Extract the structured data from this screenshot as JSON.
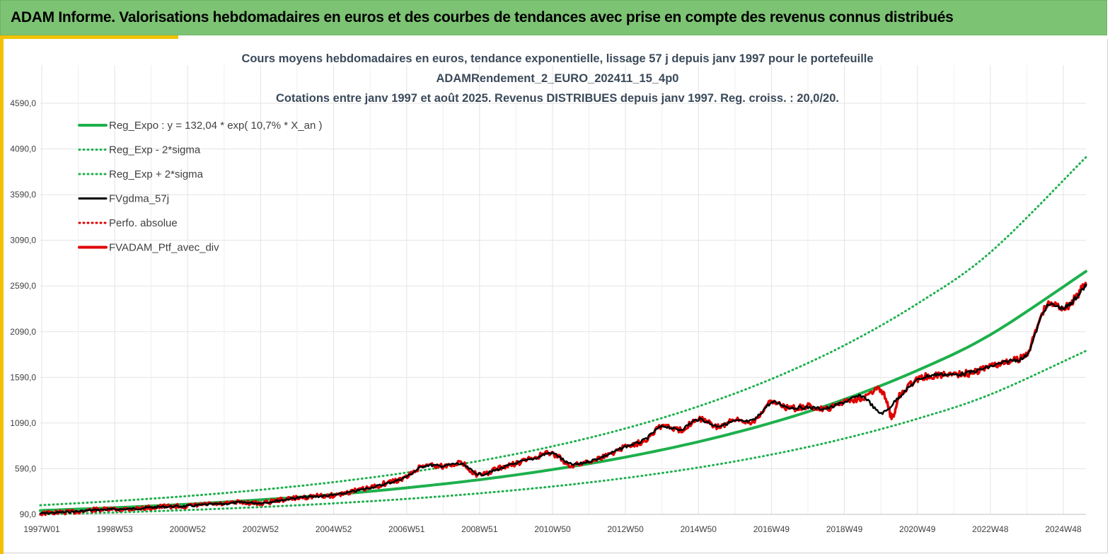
{
  "header": {
    "title": "ADAM Informe. Valorisations hebdomadaires en euros et des courbes de tendances avec prise en compte des revenus connus distribués"
  },
  "colors": {
    "header_bg": "#7dc374",
    "accent": "#f2c200",
    "trend_green": "#1db04c",
    "black_series": "#000000",
    "red_series": "#e00000",
    "grid": "#e3e3e3"
  },
  "chart_data": {
    "type": "line",
    "title": [
      "Cours moyens hebdomadaires  en euros, tendance exponentielle, lissage 57 j depuis janv 1997 pour le portefeuille",
      "ADAMRendement_2_EURO_202411_15_4p0",
      "Cotations  entre janv 1997 et août 2025. Revenus DISTRIBUES depuis janv 1997. Reg. croiss. : 20,0/20."
    ],
    "xlabel": "",
    "ylabel": "",
    "ylim": [
      90,
      4590
    ],
    "yticks": [
      "90,0",
      "590,0",
      "1090,0",
      "1590,0",
      "2090,0",
      "2590,0",
      "3090,0",
      "3590,0",
      "4090,0",
      "4590,0"
    ],
    "xticks": [
      "1997W01",
      "1998W53",
      "2000W52",
      "2002W52",
      "2004W52",
      "2006W51",
      "2008W51",
      "2010W50",
      "2012W50",
      "2014W50",
      "2016W49",
      "2018W49",
      "2020W49",
      "2022W48",
      "2024W48"
    ],
    "x_range": [
      1997.0,
      2025.6
    ],
    "grid": true,
    "legend_position": "top-left",
    "legend": [
      {
        "name": "Reg_Expo : y = 132,04 * exp( 10,7% *  X_an )",
        "style": "solid",
        "color": "#1db04c"
      },
      {
        "name": "Reg_Exp - 2*sigma",
        "style": "dotted",
        "color": "#1db04c"
      },
      {
        "name": "Reg_Exp + 2*sigma",
        "style": "dotted",
        "color": "#1db04c"
      },
      {
        "name": "FVgdma_57j",
        "style": "solid",
        "color": "#000000"
      },
      {
        "name": "Perfo. absolue",
        "style": "dotted",
        "color": "#e00000"
      },
      {
        "name": "FVADAM_Ptf_avec_div",
        "style": "solid",
        "color": "#e00000"
      }
    ],
    "series": [
      {
        "name": "Reg_Expo : y = 132,04 * exp( 10,7% *  X_an )",
        "x": [
          1997,
          1999,
          2001,
          2003,
          2005,
          2007,
          2009,
          2011,
          2013,
          2015,
          2017,
          2019,
          2021,
          2023,
          2025.6
        ],
        "values": [
          132,
          163,
          201,
          249,
          307,
          380,
          469,
          580,
          716,
          885,
          1093,
          1350,
          1668,
          2060,
          2750
        ]
      },
      {
        "name": "Reg_Exp - 2*sigma",
        "x": [
          1997,
          1999,
          2001,
          2003,
          2005,
          2007,
          2009,
          2011,
          2013,
          2015,
          2017,
          2019,
          2021,
          2023,
          2025.6
        ],
        "values": [
          90,
          111,
          137,
          170,
          210,
          259,
          320,
          395,
          488,
          603,
          745,
          921,
          1138,
          1405,
          1880
        ]
      },
      {
        "name": "Reg_Exp + 2*sigma",
        "x": [
          1997,
          1999,
          2001,
          2003,
          2005,
          2007,
          2009,
          2011,
          2013,
          2015,
          2017,
          2019,
          2021,
          2023,
          2025.6
        ],
        "values": [
          190,
          235,
          290,
          358,
          442,
          546,
          675,
          834,
          1030,
          1272,
          1572,
          1942,
          2399,
          2963,
          4000
        ]
      },
      {
        "name": "FVgdma_57j",
        "x": [
          1997.0,
          1997.5,
          1998.0,
          1998.5,
          1999.0,
          1999.5,
          2000.0,
          2000.5,
          2001.0,
          2001.5,
          2002.0,
          2002.5,
          2003.0,
          2003.5,
          2004.0,
          2004.5,
          2005.0,
          2005.5,
          2006.0,
          2006.5,
          2007.0,
          2007.5,
          2008.0,
          2008.5,
          2009.0,
          2009.5,
          2010.0,
          2010.5,
          2011.0,
          2011.5,
          2012.0,
          2012.5,
          2013.0,
          2013.5,
          2014.0,
          2014.5,
          2015.0,
          2015.5,
          2016.0,
          2016.5,
          2017.0,
          2017.5,
          2018.0,
          2018.5,
          2019.0,
          2019.5,
          2020.0,
          2020.5,
          2021.0,
          2021.5,
          2022.0,
          2022.5,
          2023.0,
          2023.5,
          2024.0,
          2024.5,
          2025.0,
          2025.3,
          2025.6
        ],
        "values": [
          100,
          110,
          122,
          138,
          145,
          150,
          165,
          175,
          180,
          195,
          205,
          220,
          215,
          240,
          270,
          285,
          300,
          335,
          380,
          430,
          500,
          620,
          620,
          640,
          530,
          580,
          650,
          700,
          760,
          640,
          670,
          740,
          830,
          900,
          1050,
          1020,
          1130,
          1060,
          1110,
          1120,
          1310,
          1260,
          1260,
          1250,
          1320,
          1380,
          1200,
          1380,
          1560,
          1620,
          1620,
          1650,
          1710,
          1770,
          1850,
          2350,
          2350,
          2450,
          2600
        ]
      },
      {
        "name": "FVADAM_Ptf_avec_div",
        "x": [
          1997.0,
          1997.5,
          1998.0,
          1998.5,
          1999.0,
          1999.5,
          2000.0,
          2000.5,
          2001.0,
          2001.5,
          2002.0,
          2002.5,
          2003.0,
          2003.5,
          2004.0,
          2004.5,
          2005.0,
          2005.5,
          2006.0,
          2006.5,
          2007.0,
          2007.5,
          2008.0,
          2008.5,
          2009.0,
          2009.5,
          2010.0,
          2010.5,
          2011.0,
          2011.5,
          2012.0,
          2012.5,
          2013.0,
          2013.5,
          2014.0,
          2014.5,
          2015.0,
          2015.5,
          2016.0,
          2016.5,
          2017.0,
          2017.5,
          2018.0,
          2018.5,
          2019.0,
          2019.5,
          2020.0,
          2020.3,
          2020.5,
          2021.0,
          2021.5,
          2022.0,
          2022.5,
          2023.0,
          2023.5,
          2024.0,
          2024.5,
          2025.0,
          2025.3,
          2025.6
        ],
        "values": [
          100,
          112,
          120,
          140,
          143,
          152,
          163,
          178,
          178,
          198,
          203,
          222,
          212,
          245,
          268,
          288,
          298,
          340,
          378,
          438,
          495,
          630,
          615,
          650,
          520,
          590,
          645,
          710,
          755,
          630,
          675,
          735,
          835,
          895,
          1060,
          1010,
          1140,
          1050,
          1115,
          1115,
          1320,
          1250,
          1270,
          1240,
          1330,
          1370,
          1450,
          1150,
          1390,
          1570,
          1610,
          1630,
          1640,
          1720,
          1760,
          1870,
          2360,
          2360,
          2450,
          2640
        ]
      }
    ]
  }
}
